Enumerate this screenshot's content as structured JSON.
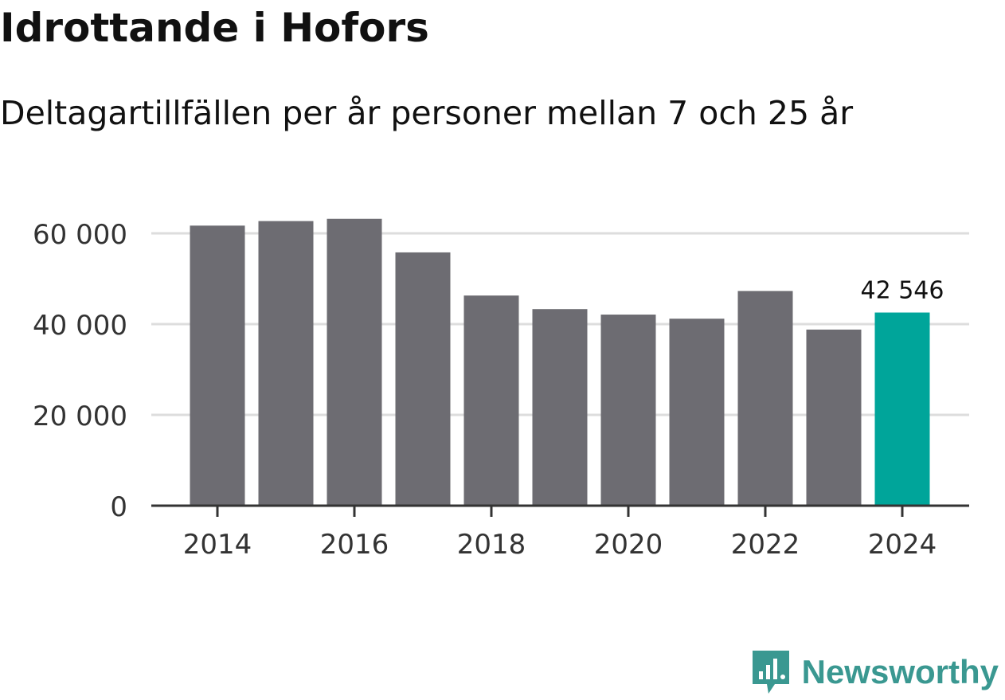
{
  "title": "Idrottande i Hofors",
  "subtitle": "Deltagartillfällen per år personer mellan 7 och 25 år",
  "brand": "Newsworthy",
  "colors": {
    "bar": "#6d6c72",
    "highlight": "#00a59a",
    "grid": "#dddddd",
    "axis": "#333333",
    "brand": "#3a9891"
  },
  "chart_data": {
    "type": "bar",
    "categories": [
      "2014",
      "2015",
      "2016",
      "2017",
      "2018",
      "2019",
      "2020",
      "2021",
      "2022",
      "2023",
      "2024"
    ],
    "values": [
      61700,
      62700,
      63200,
      55800,
      46300,
      43300,
      42100,
      41200,
      47300,
      38800,
      42546
    ],
    "highlight_index": 10,
    "data_label": "42 546",
    "ylim": [
      0,
      70000
    ],
    "yticks": [
      0,
      20000,
      40000,
      60000
    ],
    "ytick_labels": [
      "0",
      "20 000",
      "40 000",
      "60 000"
    ],
    "xtick_labels": [
      "2014",
      "2016",
      "2018",
      "2020",
      "2022",
      "2024"
    ],
    "xtick_indices": [
      0,
      2,
      4,
      6,
      8,
      10
    ],
    "title": "Idrottande i Hofors",
    "xlabel": "",
    "ylabel": "",
    "grid": true
  }
}
